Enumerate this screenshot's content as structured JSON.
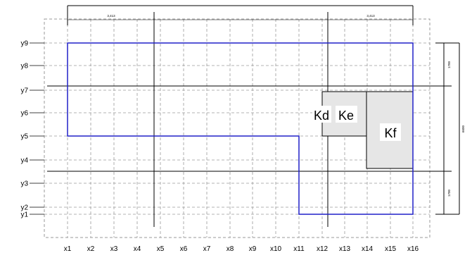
{
  "grid": {
    "x_labels": [
      "x1",
      "x2",
      "x3",
      "x4",
      "x5",
      "x6",
      "x7",
      "x8",
      "x9",
      "x10",
      "x11",
      "x12",
      "x13",
      "x14",
      "x15",
      "x16"
    ],
    "y_labels": [
      "y1",
      "y2",
      "y3",
      "y4",
      "y5",
      "y6",
      "y7",
      "y8",
      "y9"
    ]
  },
  "dimensions": {
    "top_left": "3,413",
    "top_right": "3,413",
    "right_upper": "1700",
    "right_middle": "6600",
    "right_lower": "1700"
  },
  "rooms": [
    {
      "label": "Kd"
    },
    {
      "label": "Ke"
    },
    {
      "label": "Kf"
    }
  ],
  "colors": {
    "outline": "#2020c8",
    "grid": "#9a9a9a",
    "room_fill": "#e6e6e6",
    "lines": "#000000"
  }
}
